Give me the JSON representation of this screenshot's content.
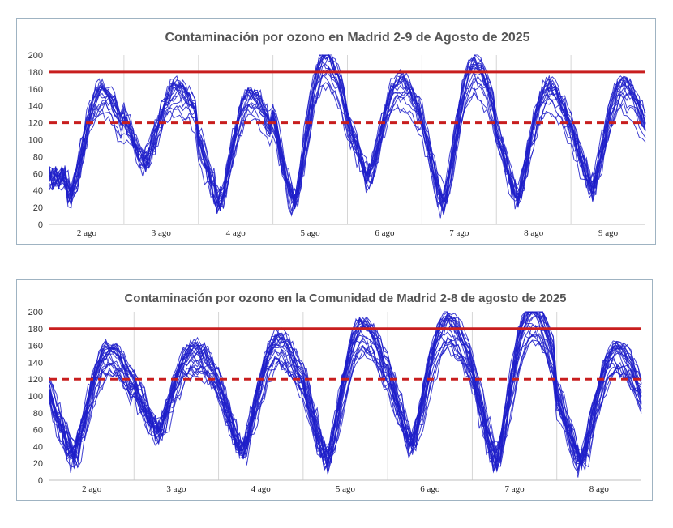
{
  "chart_data": [
    {
      "type": "line",
      "title": "Contaminación por ozono en Madrid 2-9 de Agosto de 2025",
      "xlabel": "",
      "ylabel": "",
      "ylim": [
        0,
        200
      ],
      "y_ticks": [
        0,
        20,
        40,
        60,
        80,
        100,
        120,
        140,
        160,
        180,
        200
      ],
      "categories": [
        "2 ago",
        "3 ago",
        "4 ago",
        "5 ago",
        "6 ago",
        "7 ago",
        "8 ago",
        "9 ago"
      ],
      "grid": "vertical lines between days",
      "thresholds": [
        {
          "label": "",
          "value": 180,
          "style": "solid",
          "color": "#c81e1e"
        },
        {
          "label": "",
          "value": 120,
          "style": "dashed",
          "color": "#c81e1e"
        }
      ],
      "series_color": "#1f1fc9",
      "series_count": 18,
      "hourly_pattern_note": "Hourly ozone readings per station; each day rises from a morning minimum to an afternoon peak and falls at night.",
      "daily_peaks": [
        155,
        158,
        150,
        192,
        165,
        183,
        158,
        162
      ],
      "daily_minima": [
        20,
        60,
        10,
        10,
        40,
        10,
        20,
        30
      ]
    },
    {
      "type": "line",
      "title": "Contaminación por ozono en la Comunidad de Madrid 2-8 de agosto de 2025",
      "xlabel": "",
      "ylabel": "",
      "ylim": [
        0,
        200
      ],
      "y_ticks": [
        0,
        20,
        40,
        60,
        80,
        100,
        120,
        140,
        160,
        180,
        200
      ],
      "categories": [
        "2 ago",
        "3 ago",
        "4 ago",
        "5 ago",
        "6 ago",
        "7 ago",
        "8 ago"
      ],
      "grid": "vertical lines between days",
      "thresholds": [
        {
          "label": "",
          "value": 180,
          "style": "solid",
          "color": "#c81e1e"
        },
        {
          "label": "",
          "value": 120,
          "style": "dashed",
          "color": "#c81e1e"
        }
      ],
      "series_color": "#1f1fc9",
      "series_count": 24,
      "hourly_pattern_note": "Hourly ozone readings per station across the region; wider spread than the city series.",
      "daily_peaks": [
        150,
        150,
        160,
        178,
        182,
        195,
        150
      ],
      "daily_minima": [
        15,
        45,
        20,
        10,
        30,
        10,
        10
      ]
    }
  ]
}
